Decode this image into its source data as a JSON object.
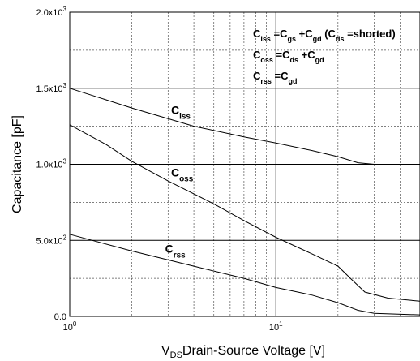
{
  "chart_data": {
    "type": "line",
    "xscale": "log",
    "xlim": [
      1,
      50
    ],
    "ylim": [
      0,
      2000
    ],
    "grid": true,
    "xlabel": {
      "main": "V",
      "sub": "DS",
      "rest": "Drain-Source Voltage [V]"
    },
    "ylabel": "Capacitance    [pF]",
    "x_ticks": [
      {
        "value": 1,
        "base": "10",
        "exp": "0"
      },
      {
        "value": 10,
        "base": "10",
        "exp": "1"
      }
    ],
    "y_ticks": [
      {
        "value": 0,
        "label": "0.0"
      },
      {
        "value": 500,
        "base": "5.0x10",
        "exp": "2"
      },
      {
        "value": 1000,
        "base": "1.0x10",
        "exp": "3"
      },
      {
        "value": 1500,
        "base": "1.5x10",
        "exp": "3"
      },
      {
        "value": 2000,
        "base": "2.0x10",
        "exp": "3"
      }
    ],
    "series": [
      {
        "name": "Ciss",
        "label_main": "C",
        "label_sub": "iss",
        "label_at": {
          "x": 3.1,
          "y": 1330
        },
        "points": [
          [
            1,
            1500
          ],
          [
            2,
            1370
          ],
          [
            4,
            1250
          ],
          [
            7,
            1180
          ],
          [
            10,
            1140
          ],
          [
            15,
            1090
          ],
          [
            20,
            1050
          ],
          [
            25,
            1010
          ],
          [
            30,
            1000
          ],
          [
            50,
            995
          ]
        ]
      },
      {
        "name": "Coss",
        "label_main": "C",
        "label_sub": "oss",
        "label_at": {
          "x": 3.1,
          "y": 920
        },
        "points": [
          [
            1,
            1260
          ],
          [
            1.5,
            1130
          ],
          [
            2,
            1020
          ],
          [
            3,
            890
          ],
          [
            5,
            740
          ],
          [
            7,
            630
          ],
          [
            10,
            520
          ],
          [
            15,
            410
          ],
          [
            20,
            330
          ],
          [
            23,
            250
          ],
          [
            27,
            160
          ],
          [
            35,
            120
          ],
          [
            50,
            100
          ]
        ]
      },
      {
        "name": "Crss",
        "label_main": "C",
        "label_sub": "rss",
        "label_at": {
          "x": 2.9,
          "y": 420
        },
        "points": [
          [
            1,
            540
          ],
          [
            2,
            430
          ],
          [
            4,
            330
          ],
          [
            7,
            250
          ],
          [
            10,
            190
          ],
          [
            15,
            140
          ],
          [
            20,
            90
          ],
          [
            25,
            40
          ],
          [
            30,
            20
          ],
          [
            50,
            10
          ]
        ]
      }
    ],
    "equations": [
      {
        "parts": [
          [
            "C",
            "n"
          ],
          [
            "iss",
            "s"
          ],
          [
            " =C",
            "n"
          ],
          [
            "gs",
            "s"
          ],
          [
            " +C",
            "n"
          ],
          [
            "gd",
            "s"
          ],
          [
            " (C",
            "n"
          ],
          [
            "ds",
            "s"
          ],
          [
            " =shorted)",
            "n"
          ]
        ]
      },
      {
        "parts": [
          [
            "C",
            "n"
          ],
          [
            "oss",
            "s"
          ],
          [
            " =C",
            "n"
          ],
          [
            "ds",
            "s"
          ],
          [
            " +C",
            "n"
          ],
          [
            "gd",
            "s"
          ]
        ]
      },
      {
        "parts": [
          [
            "C",
            "n"
          ],
          [
            "rss",
            "s"
          ],
          [
            " =C",
            "n"
          ],
          [
            "gd",
            "s"
          ]
        ]
      }
    ]
  }
}
